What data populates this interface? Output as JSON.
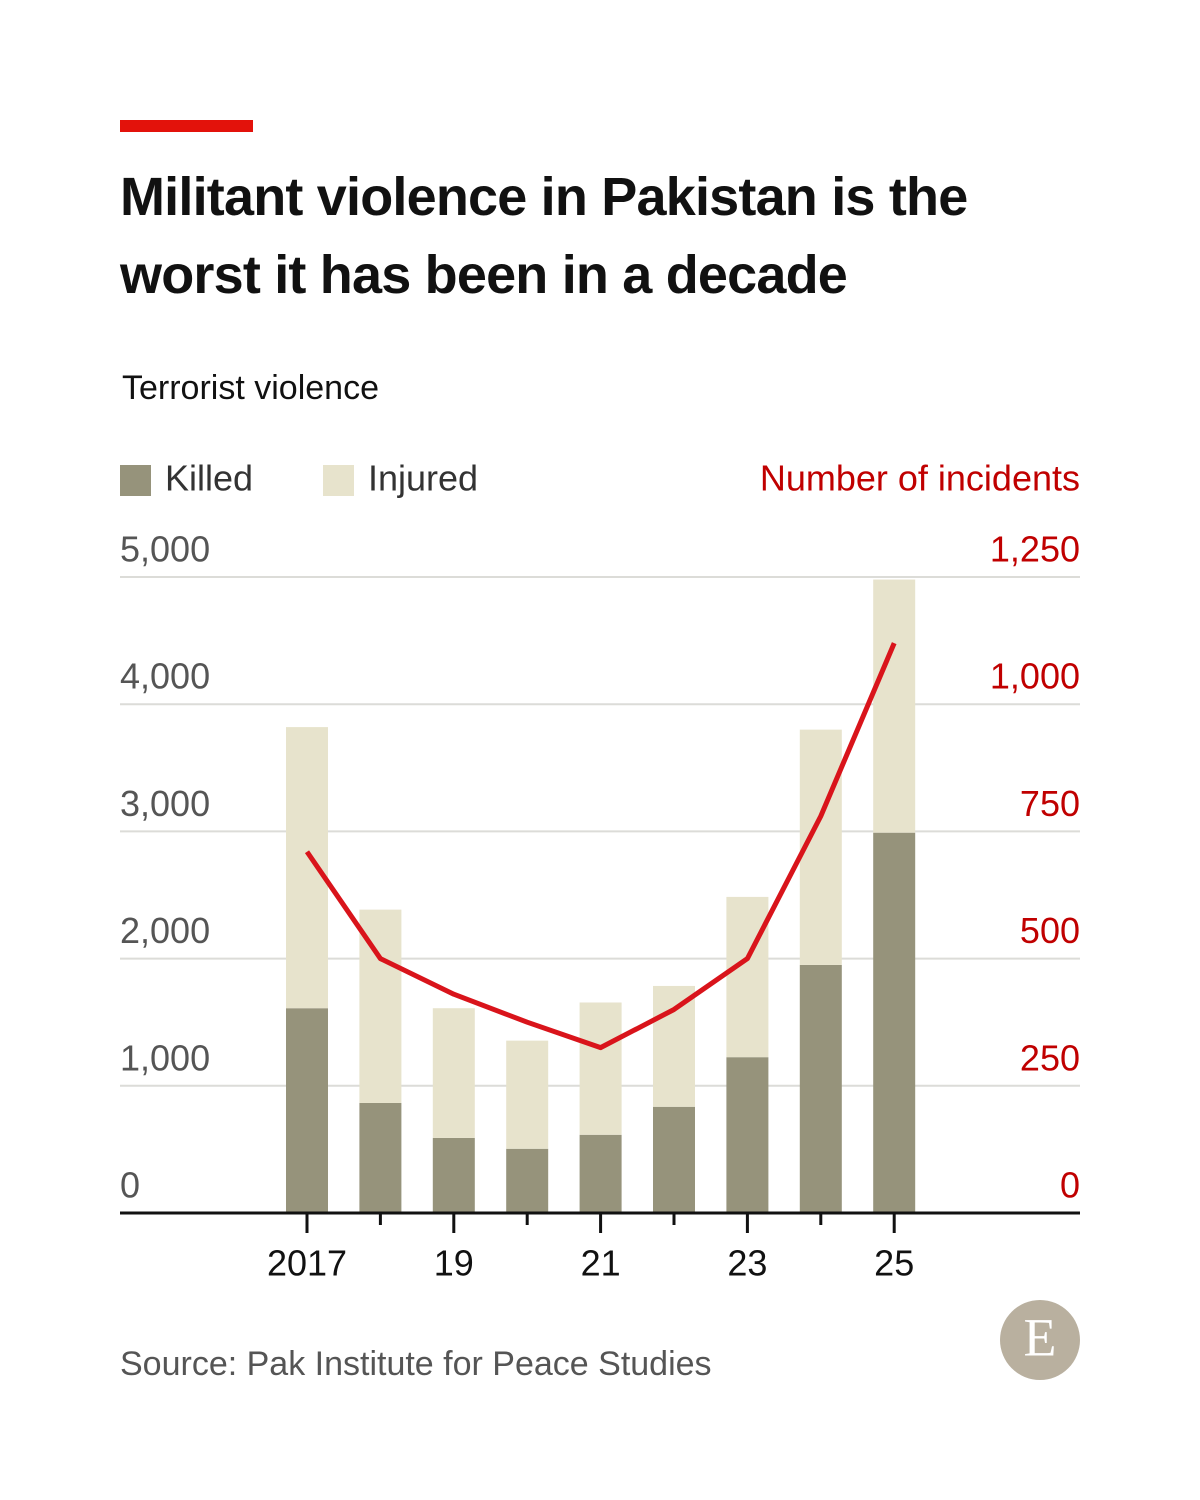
{
  "chart_data": {
    "type": "bar",
    "stacked": true,
    "title": "Militant violence in Pakistan is the worst it has been in a decade",
    "subtitle": "Terrorist violence",
    "y2_label": "Number of incidents",
    "source": "Source: Pak Institute for Peace Studies",
    "logo": "E",
    "categories": [
      "2017",
      null,
      "19",
      null,
      "21",
      null,
      "23",
      null,
      "25"
    ],
    "series": [
      {
        "name": "Killed",
        "type": "bar",
        "color": "#96937b",
        "values": [
          1610,
          865,
          590,
          505,
          615,
          835,
          1225,
          1950,
          2990
        ]
      },
      {
        "name": "Injured",
        "type": "bar",
        "color": "#e7e3cc",
        "values": [
          2210,
          1520,
          1020,
          850,
          1040,
          950,
          1260,
          1850,
          1990
        ]
      },
      {
        "name": "Number of incidents",
        "type": "line",
        "axis": "y2",
        "color": "#d9141b",
        "values": [
          710,
          500,
          430,
          375,
          325,
          400,
          500,
          780,
          1120
        ]
      }
    ],
    "ylim": [
      0,
      5000
    ],
    "yticks": [
      0,
      {
        "value": 1000,
        "label": "1,000"
      },
      {
        "value": 2000,
        "label": "2,000"
      },
      {
        "value": 3000,
        "label": "3,000"
      },
      {
        "value": 4000,
        "label": "4,000"
      },
      {
        "value": 5000,
        "label": "5,000"
      }
    ],
    "y2lim": [
      0,
      1250
    ],
    "y2ticks": [
      0,
      250,
      500,
      750,
      {
        "value": 1000,
        "label": "1,000"
      },
      {
        "value": 1250,
        "label": "1,250"
      }
    ],
    "grid": true,
    "legend": "top-left"
  }
}
